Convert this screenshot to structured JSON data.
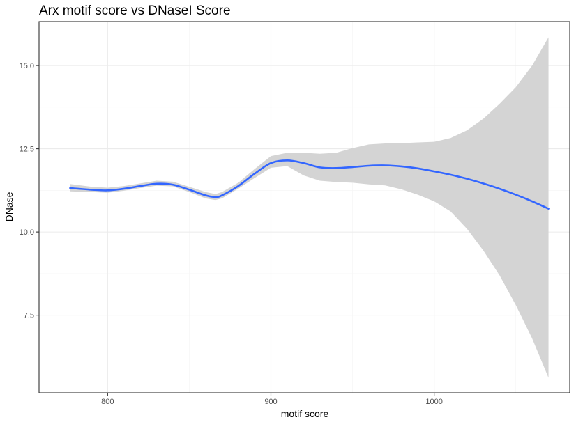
{
  "chart_data": {
    "type": "line",
    "title": "Arx motif score vs DNaseI Score",
    "xlabel": "motif score",
    "ylabel": "DNase",
    "xlim": [
      758,
      1083
    ],
    "ylim": [
      5.17,
      16.32
    ],
    "x_ticks": [
      800,
      900,
      1000
    ],
    "y_ticks": [
      7.5,
      10.0,
      12.5,
      15.0
    ],
    "x_tick_labels": [
      "800",
      "900",
      "1000"
    ],
    "y_tick_labels": [
      "7.5",
      "10.0",
      "12.5",
      "15.0"
    ],
    "grid": true,
    "legend": "none",
    "series": [
      {
        "kind": "smooth",
        "color": "#3366ff",
        "band_color": "#d4d4d4",
        "x": [
          777,
          790,
          800,
          810,
          820,
          830,
          840,
          850,
          860,
          866,
          870,
          880,
          890,
          900,
          910,
          920,
          930,
          940,
          950,
          960,
          970,
          980,
          990,
          1000,
          1010,
          1020,
          1030,
          1040,
          1050,
          1060,
          1070
        ],
        "y": [
          11.32,
          11.27,
          11.25,
          11.3,
          11.38,
          11.45,
          11.42,
          11.27,
          11.1,
          11.05,
          11.1,
          11.38,
          11.75,
          12.07,
          12.15,
          12.07,
          11.94,
          11.92,
          11.95,
          11.99,
          12.0,
          11.97,
          11.91,
          11.82,
          11.72,
          11.6,
          11.46,
          11.3,
          11.12,
          10.92,
          10.7
        ],
        "lower": [
          11.22,
          11.2,
          11.18,
          11.24,
          11.32,
          11.39,
          11.37,
          11.2,
          11.01,
          10.96,
          11.01,
          11.3,
          11.62,
          11.93,
          11.98,
          11.7,
          11.54,
          11.5,
          11.48,
          11.43,
          11.4,
          11.28,
          11.12,
          10.92,
          10.62,
          10.1,
          9.45,
          8.7,
          7.8,
          6.8,
          5.62
        ],
        "upper": [
          11.44,
          11.36,
          11.33,
          11.38,
          11.46,
          11.54,
          11.51,
          11.36,
          11.2,
          11.14,
          11.2,
          11.48,
          11.89,
          12.28,
          12.38,
          12.38,
          12.35,
          12.38,
          12.52,
          12.63,
          12.66,
          12.67,
          12.69,
          12.71,
          12.82,
          13.05,
          13.4,
          13.85,
          14.35,
          15.0,
          15.85
        ]
      }
    ]
  }
}
